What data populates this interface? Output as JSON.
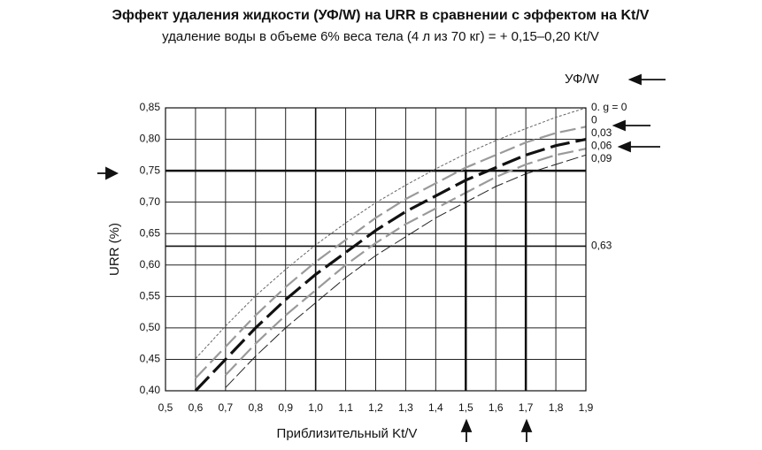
{
  "chart_data": {
    "type": "line",
    "title": "Эффект удаления жидкости (УФ/W) на URR в сравнении с эффектом на Kt/V",
    "subtitle": "удаление воды в объеме 6% веса тела (4 л из 70 кг) = + 0,15–0,20 Kt/V",
    "series_header": "УФ/W",
    "x_label": "Приблизительный Kt/V",
    "y_label": "URR (%)",
    "x": [
      0.5,
      0.6,
      0.7,
      0.8,
      0.9,
      1.0,
      1.1,
      1.2,
      1.3,
      1.4,
      1.5,
      1.6,
      1.7,
      1.8,
      1.9
    ],
    "series": [
      {
        "name": "0. g = 0",
        "color": "#666666",
        "values": [
          null,
          0.451,
          0.503,
          0.551,
          0.593,
          0.632,
          0.667,
          0.699,
          0.727,
          0.753,
          0.777,
          0.798,
          0.817,
          0.835,
          0.85
        ]
      },
      {
        "name": "0",
        "color": "#9a9a9a",
        "values": [
          null,
          0.42,
          0.47,
          0.52,
          0.565,
          0.605,
          0.64,
          0.675,
          0.705,
          0.73,
          0.755,
          0.775,
          0.795,
          0.81,
          0.82
        ]
      },
      {
        "name": "0,03",
        "color": "#111111",
        "values": [
          null,
          0.4,
          0.45,
          0.5,
          0.545,
          0.585,
          0.62,
          0.655,
          0.685,
          0.71,
          0.735,
          0.755,
          0.775,
          0.79,
          0.8
        ]
      },
      {
        "name": "0,06",
        "color": "#9a9a9a",
        "values": [
          null,
          null,
          0.425,
          0.475,
          0.52,
          0.56,
          0.6,
          0.635,
          0.665,
          0.69,
          0.715,
          0.74,
          0.76,
          0.775,
          0.785
        ]
      },
      {
        "name": "0,09",
        "color": "#222222",
        "values": [
          null,
          null,
          0.405,
          0.455,
          0.5,
          0.54,
          0.58,
          0.615,
          0.645,
          0.675,
          0.7,
          0.725,
          0.745,
          0.76,
          0.775
        ]
      }
    ],
    "xlim": [
      0.5,
      1.9
    ],
    "ylim": [
      0.4,
      0.85
    ],
    "xticks": [
      {
        "value": 0.5,
        "label": "0,5"
      },
      {
        "value": 0.6,
        "label": "0,6"
      },
      {
        "value": 0.7,
        "label": "0,7"
      },
      {
        "value": 0.8,
        "label": "0,8"
      },
      {
        "value": 0.9,
        "label": "0,9"
      },
      {
        "value": 1.0,
        "label": "1,0"
      },
      {
        "value": 1.1,
        "label": "1,1"
      },
      {
        "value": 1.2,
        "label": "1,2"
      },
      {
        "value": 1.3,
        "label": "1,3"
      },
      {
        "value": 1.4,
        "label": "1,4"
      },
      {
        "value": 1.5,
        "label": "1,5"
      },
      {
        "value": 1.6,
        "label": "1,6"
      },
      {
        "value": 1.7,
        "label": "1,7"
      },
      {
        "value": 1.8,
        "label": "1,8"
      },
      {
        "value": 1.9,
        "label": "1,9"
      }
    ],
    "yticks": [
      {
        "value": 0.4,
        "label": "0,40"
      },
      {
        "value": 0.45,
        "label": "0,45"
      },
      {
        "value": 0.5,
        "label": "0,50"
      },
      {
        "value": 0.55,
        "label": "0,55"
      },
      {
        "value": 0.6,
        "label": "0,60"
      },
      {
        "value": 0.65,
        "label": "0,65"
      },
      {
        "value": 0.7,
        "label": "0,70"
      },
      {
        "value": 0.75,
        "label": "0,75"
      },
      {
        "value": 0.8,
        "label": "0,80"
      },
      {
        "value": 0.85,
        "label": "0,85"
      }
    ],
    "grid": true,
    "reference_hlines": [
      {
        "value": 0.75
      },
      {
        "value": 0.63,
        "label": "0,63"
      }
    ],
    "reference_vlines": [
      1.0,
      1.5,
      1.7
    ]
  }
}
